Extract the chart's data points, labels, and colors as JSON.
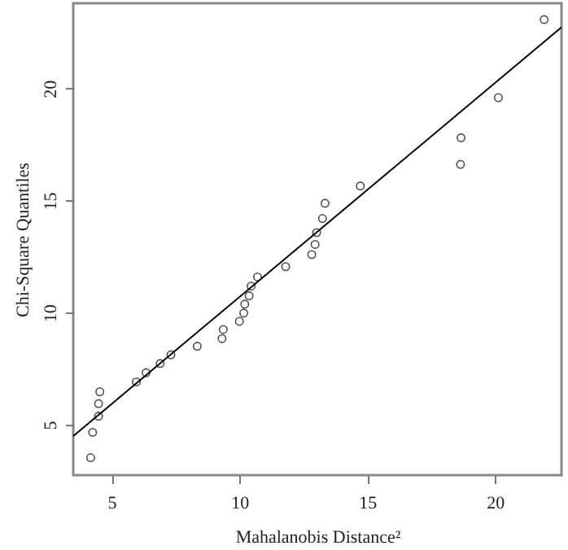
{
  "chart_data": {
    "type": "scatter",
    "xlabel": "Mahalanobis Distance²",
    "ylabel": "Chi-Square Quantiles",
    "xlim": [
      3.5,
      22.6
    ],
    "ylim": [
      2.75,
      23.8
    ],
    "xticks": [
      5,
      10,
      15,
      20
    ],
    "yticks": [
      5,
      10,
      15,
      20
    ],
    "series": [
      {
        "marker": "circle",
        "color": "#000000",
        "x": [
          4.18,
          4.26,
          4.49,
          4.49,
          4.54,
          5.97,
          6.35,
          6.9,
          7.32,
          8.35,
          9.32,
          9.37,
          10.0,
          10.17,
          10.21,
          10.38,
          10.46,
          10.71,
          11.81,
          12.83,
          12.96,
          13.02,
          13.25,
          13.35,
          14.73,
          18.65,
          18.67,
          20.13,
          21.92
        ],
        "values": [
          3.53,
          4.66,
          5.38,
          5.94,
          6.47,
          6.91,
          7.32,
          7.73,
          8.12,
          8.5,
          8.84,
          9.25,
          9.61,
          9.98,
          10.38,
          10.75,
          11.18,
          11.59,
          12.05,
          12.59,
          13.04,
          13.57,
          14.2,
          14.88,
          15.65,
          16.61,
          17.8,
          19.59,
          23.07
        ]
      },
      {
        "type": "line",
        "color": "#000000",
        "x": [
          3.5,
          22.6
        ],
        "values": [
          4.49,
          22.73
        ]
      }
    ]
  }
}
